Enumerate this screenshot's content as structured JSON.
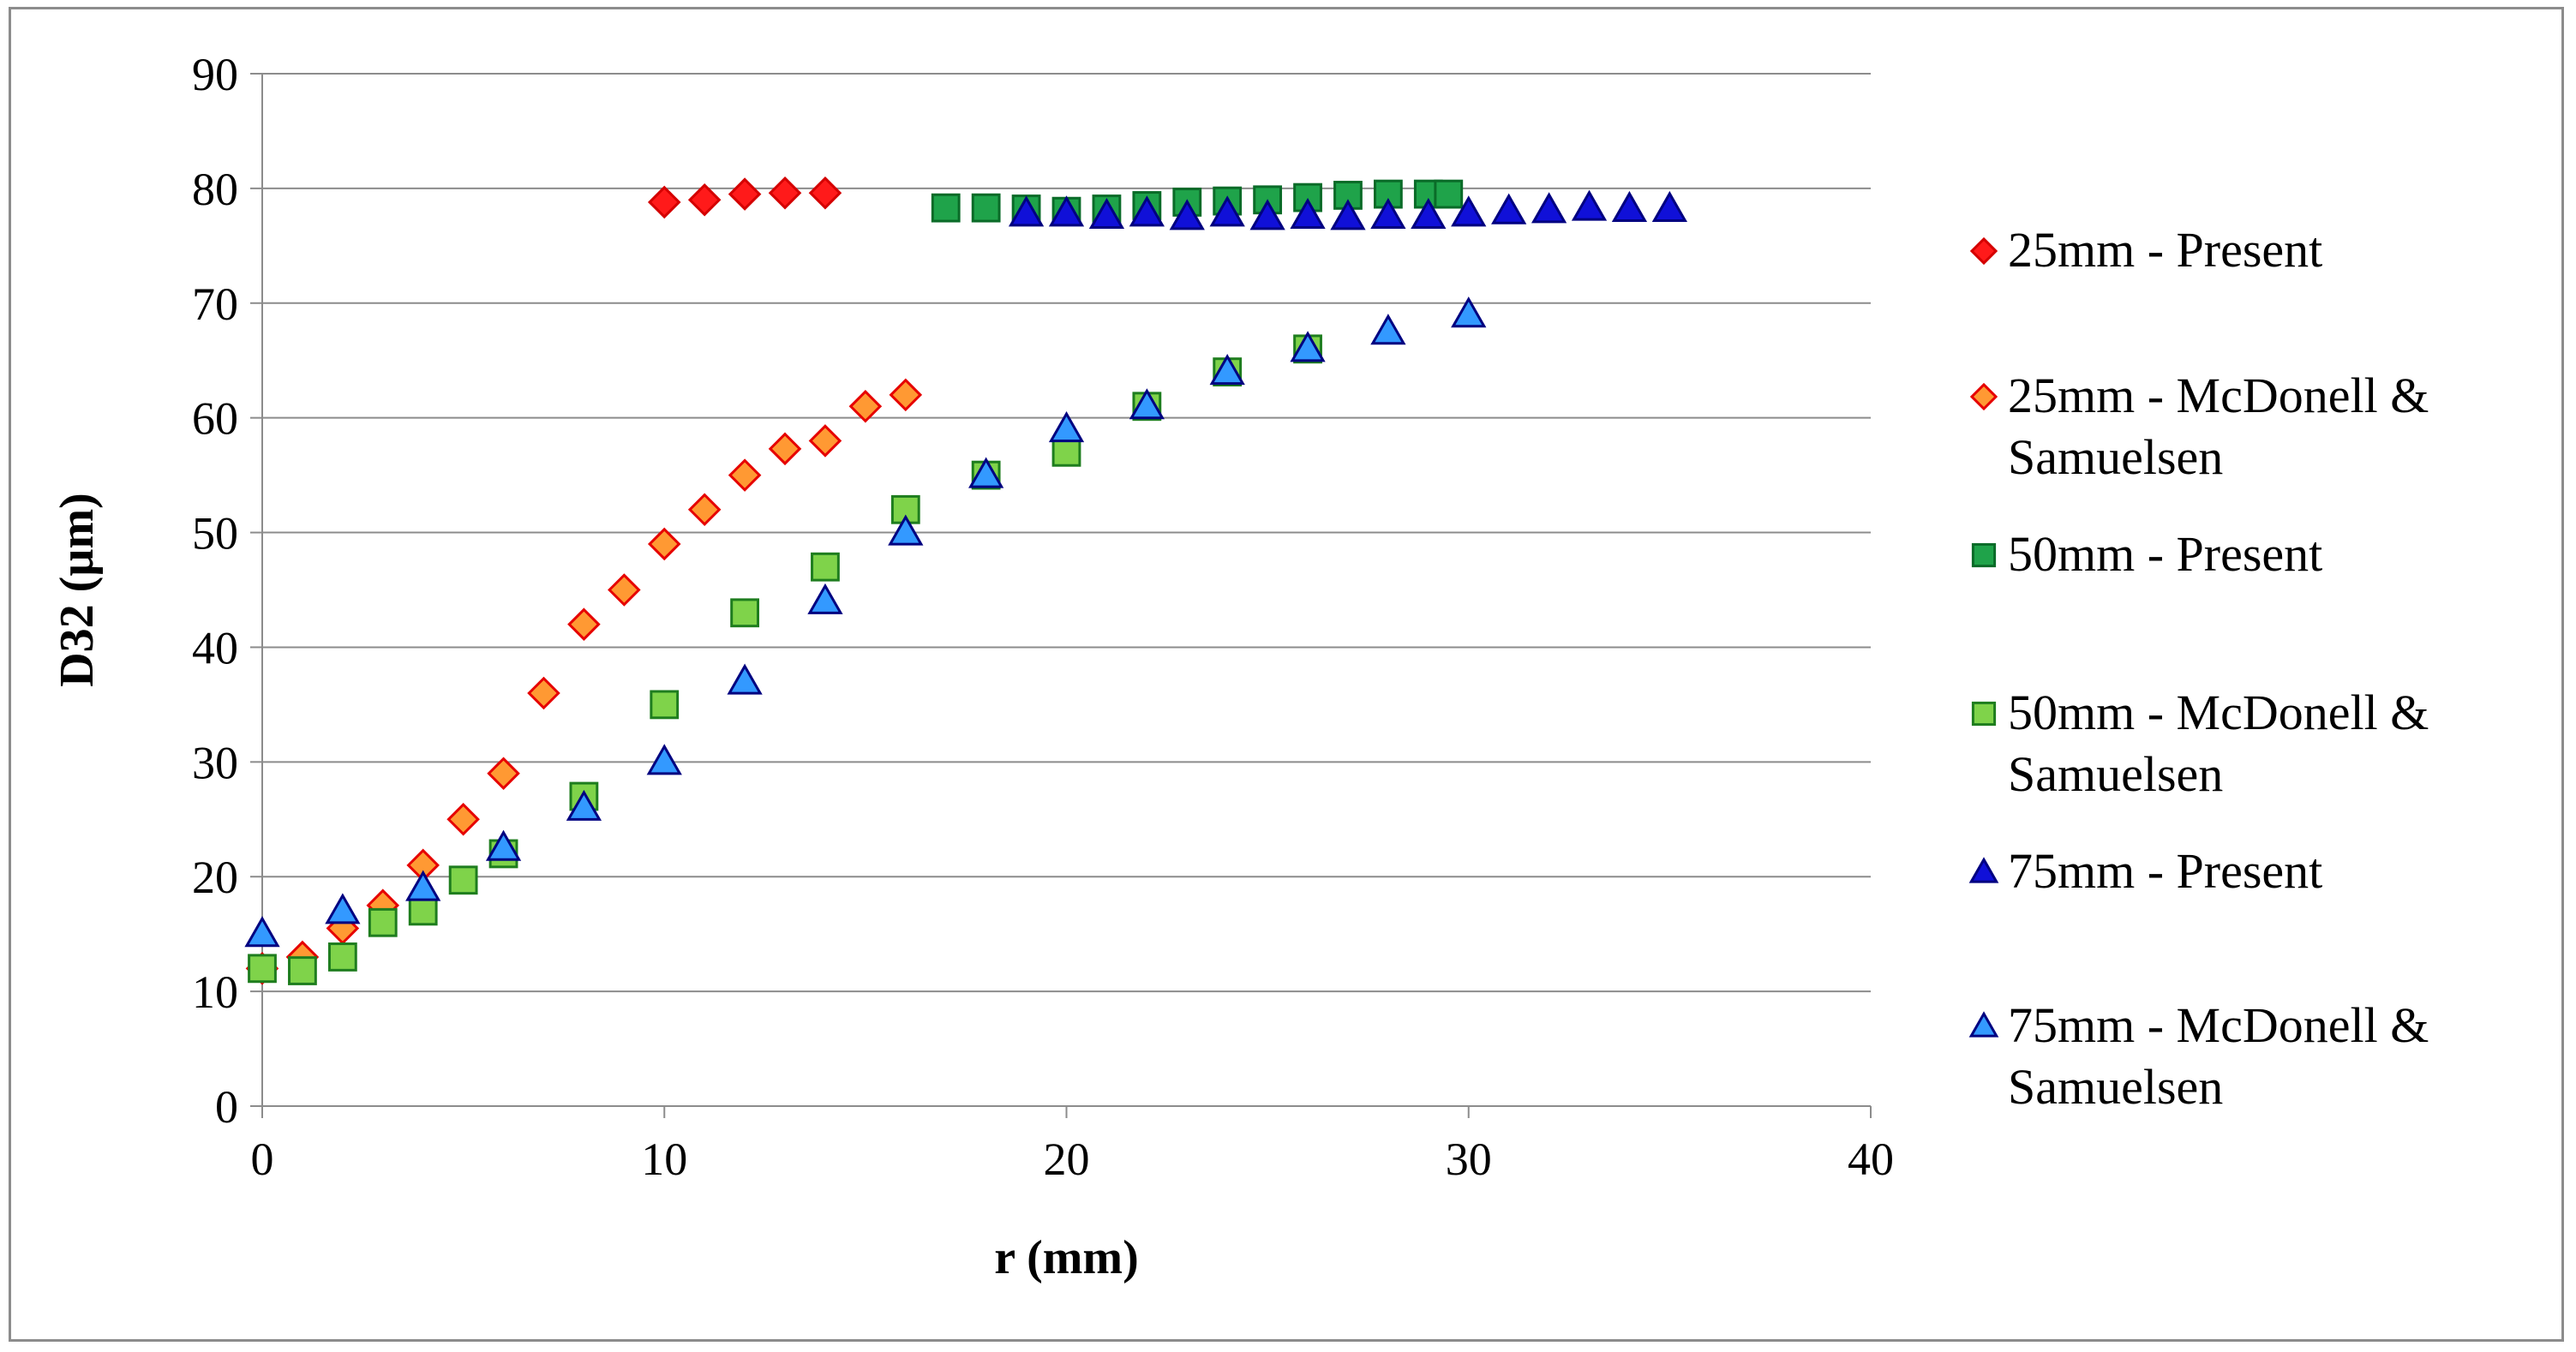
{
  "chart_data": {
    "type": "scatter",
    "title": "",
    "xlabel": "r (mm)",
    "ylabel": "D32 (µm)",
    "xlim": [
      0,
      40
    ],
    "ylim": [
      0,
      90
    ],
    "xticks": [
      0,
      10,
      20,
      30,
      40
    ],
    "yticks": [
      0,
      10,
      20,
      30,
      40,
      50,
      60,
      70,
      80,
      90
    ],
    "grid": "horizontal",
    "legend_position": "right",
    "series": [
      {
        "name": "25mm - Present",
        "legend_lines": [
          "25mm - Present"
        ],
        "marker": "diamond",
        "color": "#ff1a1a",
        "stroke": "#d40000",
        "x": [
          10,
          11,
          12,
          13,
          14
        ],
        "y": [
          78.8,
          79,
          79.5,
          79.6,
          79.6
        ]
      },
      {
        "name": "25mm - McDonell & Samuelsen",
        "legend_lines": [
          "25mm - McDonell &",
          "Samuelsen"
        ],
        "marker": "diamond",
        "color": "#ff9933",
        "stroke": "#e60000",
        "x": [
          0,
          1,
          2,
          3,
          4,
          5,
          6,
          7,
          8,
          9,
          10,
          11,
          12,
          13,
          14,
          15,
          16
        ],
        "y": [
          12,
          13,
          15.5,
          17.5,
          21,
          25,
          29,
          36,
          42,
          45,
          49,
          52,
          55,
          57.3,
          58,
          61,
          62
        ]
      },
      {
        "name": "50mm - Present",
        "legend_lines": [
          "50mm - Present"
        ],
        "marker": "square",
        "color": "#1fa34a",
        "stroke": "#0a6b28",
        "x": [
          17,
          18,
          19,
          20,
          21,
          22,
          23,
          24,
          25,
          26,
          27,
          28,
          29,
          29.5
        ],
        "y": [
          78.3,
          78.3,
          78.2,
          78,
          78.2,
          78.5,
          78.8,
          78.9,
          79,
          79.2,
          79.4,
          79.5,
          79.5,
          79.5
        ]
      },
      {
        "name": "50mm - McDonell & Samuelsen",
        "legend_lines": [
          "50mm - McDonell &",
          "Samuelsen"
        ],
        "marker": "square",
        "color": "#7fd34a",
        "stroke": "#1e7d1e",
        "x": [
          0,
          1,
          2,
          3,
          4,
          5,
          6,
          8,
          10,
          12,
          14,
          16,
          18,
          20,
          22,
          24,
          26
        ],
        "y": [
          12,
          11.8,
          13,
          16,
          17,
          19.7,
          22,
          27,
          35,
          43,
          47,
          52,
          55,
          57,
          61,
          64,
          66
        ]
      },
      {
        "name": "75mm - Present",
        "legend_lines": [
          "75mm - Present"
        ],
        "marker": "triangle",
        "color": "#1010d8",
        "stroke": "#000080",
        "x": [
          19,
          20,
          21,
          22,
          23,
          24,
          25,
          26,
          27,
          28,
          29,
          30,
          31,
          32,
          33,
          34,
          35
        ],
        "y": [
          77.8,
          77.8,
          77.6,
          77.8,
          77.5,
          77.8,
          77.5,
          77.6,
          77.5,
          77.6,
          77.6,
          77.8,
          78,
          78.1,
          78.3,
          78.2,
          78.2
        ]
      },
      {
        "name": "75mm - McDonell & Samuelsen",
        "legend_lines": [
          "75mm - McDonell &",
          "Samuelsen"
        ],
        "marker": "triangle",
        "color": "#3399ff",
        "stroke": "#000080",
        "x": [
          0,
          2,
          4,
          6,
          8,
          10,
          12,
          14,
          16,
          18,
          20,
          22,
          24,
          26,
          28,
          30
        ],
        "y": [
          15,
          17,
          19,
          22.5,
          26,
          30,
          37,
          44,
          50,
          55,
          59,
          61,
          64,
          66,
          67.5,
          69
        ]
      }
    ]
  }
}
